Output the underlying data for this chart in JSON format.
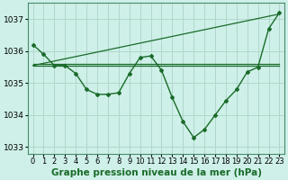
{
  "background_color": "#cef0e8",
  "grid_color": "#b0d8cc",
  "line_color": "#1a6b2a",
  "xlabel": "Graphe pression niveau de la mer (hPa)",
  "ylim": [
    1032.8,
    1037.5
  ],
  "xlim": [
    -0.5,
    23.5
  ],
  "yticks": [
    1033,
    1034,
    1035,
    1036,
    1037
  ],
  "xtick_labels": [
    "0",
    "1",
    "2",
    "3",
    "4",
    "5",
    "6",
    "7",
    "8",
    "9",
    "10",
    "11",
    "12",
    "13",
    "14",
    "15",
    "16",
    "17",
    "18",
    "19",
    "20",
    "21",
    "22",
    "23"
  ],
  "y_main": [
    1036.2,
    1035.9,
    1035.55,
    1035.55,
    1035.3,
    1034.8,
    1034.65,
    1034.65,
    1034.7,
    1035.3,
    1035.8,
    1035.85,
    1035.4,
    1034.55,
    1033.8,
    1033.3,
    1033.55,
    1034.0,
    1034.45,
    1034.8,
    1035.35,
    1035.5,
    1036.7,
    1037.2
  ],
  "y_flat1": [
    1035.55,
    1035.55,
    1035.55,
    1035.55,
    1035.55,
    1035.55,
    1035.55,
    1035.55,
    1035.55,
    1035.55,
    1035.55,
    1035.55,
    1035.55,
    1035.55,
    1035.55,
    1035.55,
    1035.55,
    1035.55,
    1035.55,
    1035.55,
    1035.55,
    1035.55,
    1035.55,
    1035.55
  ],
  "y_flat2": [
    1035.6,
    1035.6,
    1035.6,
    1035.6,
    1035.6,
    1035.6,
    1035.6,
    1035.6,
    1035.6,
    1035.6,
    1035.6,
    1035.6,
    1035.6,
    1035.6,
    1035.6,
    1035.6,
    1035.6,
    1035.6,
    1035.6,
    1035.6,
    1035.6,
    1035.6,
    1035.6,
    1035.6
  ],
  "y_rise": [
    1035.55,
    1035.62,
    1035.69,
    1035.76,
    1035.83,
    1035.9,
    1035.97,
    1036.04,
    1036.11,
    1036.18,
    1036.25,
    1036.32,
    1036.39,
    1036.46,
    1036.53,
    1036.6,
    1036.67,
    1036.74,
    1036.81,
    1036.88,
    1036.95,
    1037.02,
    1037.09,
    1037.16
  ],
  "tick_fontsize": 6.5,
  "xlabel_fontsize": 7.5
}
